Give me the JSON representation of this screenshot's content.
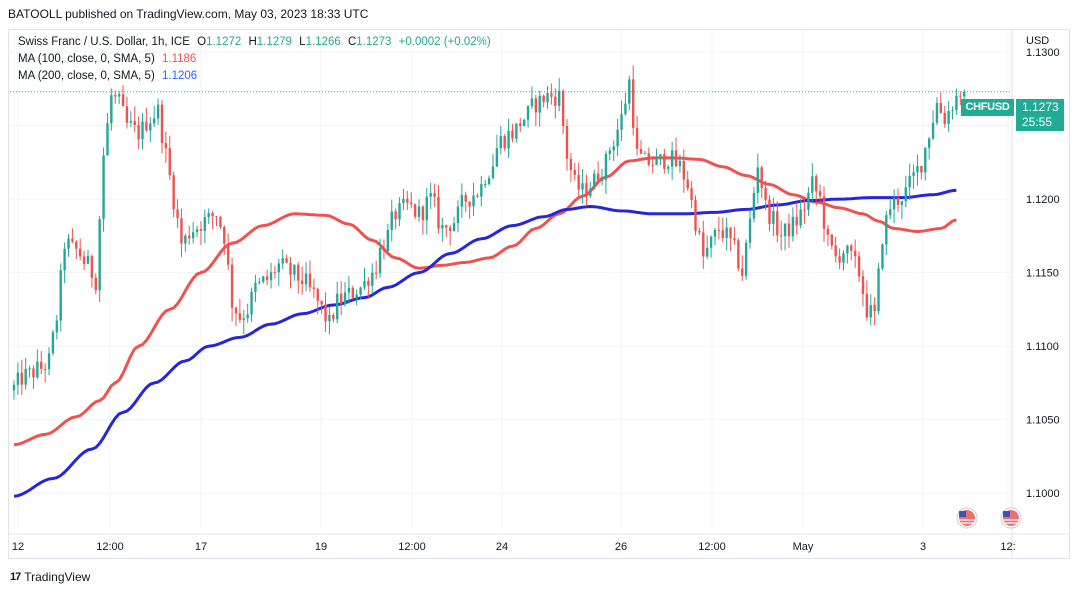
{
  "publisher_line": "BATOOLL published on TradingView.com, May 03, 2023 18:33 UTC",
  "legend": {
    "symbol": "Swiss Franc / U.S. Dollar, 1h, ICE",
    "open_label": "O",
    "open": "1.1272",
    "high_label": "H",
    "high": "1.1279",
    "low_label": "L",
    "low": "1.1266",
    "close_label": "C",
    "close": "1.1273",
    "change": "+0.0002 (+0.02%)",
    "ma100_label": "MA (100, close, 0, SMA, 5)",
    "ma100_value": "1.1186",
    "ma200_label": "MA (200, close, 0, SMA, 5)",
    "ma200_value": "1.1206"
  },
  "currency_label": "USD",
  "last_price_tag": {
    "symbol": "CHFUSD",
    "price": "1.1273",
    "countdown": "25:55"
  },
  "footer_brand": "TradingView",
  "colors": {
    "up": "#26a69a",
    "down": "#ef5350",
    "ma100": "#ef5350",
    "ma200": "#2727d9",
    "price_line": "#22ab94",
    "grid": "#f0f3fa"
  },
  "chart_data": {
    "type": "candlestick",
    "ylim": [
      1.0975,
      1.1315
    ],
    "y_ticks": [
      "1.1300",
      "1.1250",
      "1.1200",
      "1.1150",
      "1.1100",
      "1.1050",
      "1.1000"
    ],
    "x_ticks": [
      "12",
      "12:00",
      "17",
      "19",
      "12:00",
      "24",
      "26",
      "12:00",
      "May",
      "3",
      "12:"
    ],
    "last_price": 1.1273,
    "price_anchors": [
      [
        0,
        1.107
      ],
      [
        4,
        1.108
      ],
      [
        8,
        1.1085
      ],
      [
        10,
        1.109
      ],
      [
        12,
        1.112
      ],
      [
        14,
        1.117
      ],
      [
        17,
        1.1165
      ],
      [
        20,
        1.1155
      ],
      [
        22,
        1.1145
      ],
      [
        24,
        1.123
      ],
      [
        26,
        1.127
      ],
      [
        28,
        1.1265
      ],
      [
        30,
        1.125
      ],
      [
        33,
        1.1245
      ],
      [
        36,
        1.1255
      ],
      [
        38,
        1.126
      ],
      [
        40,
        1.123
      ],
      [
        42,
        1.12
      ],
      [
        44,
        1.117
      ],
      [
        47,
        1.118
      ],
      [
        50,
        1.1185
      ],
      [
        53,
        1.119
      ],
      [
        55,
        1.1175
      ],
      [
        57,
        1.113
      ],
      [
        59,
        1.112
      ],
      [
        61,
        1.1125
      ],
      [
        63,
        1.114
      ],
      [
        66,
        1.1145
      ],
      [
        69,
        1.1155
      ],
      [
        72,
        1.115
      ],
      [
        75,
        1.1145
      ],
      [
        78,
        1.1135
      ],
      [
        80,
        1.1125
      ],
      [
        82,
        1.1115
      ],
      [
        84,
        1.113
      ],
      [
        87,
        1.1135
      ],
      [
        90,
        1.114
      ],
      [
        93,
        1.115
      ],
      [
        96,
        1.117
      ],
      [
        99,
        1.119
      ],
      [
        102,
        1.1195
      ],
      [
        105,
        1.119
      ],
      [
        108,
        1.12
      ],
      [
        111,
        1.118
      ],
      [
        114,
        1.1185
      ],
      [
        117,
        1.12
      ],
      [
        120,
        1.1205
      ],
      [
        123,
        1.122
      ],
      [
        126,
        1.124
      ],
      [
        129,
        1.1245
      ],
      [
        132,
        1.1255
      ],
      [
        135,
        1.1265
      ],
      [
        138,
        1.127
      ],
      [
        141,
        1.127
      ],
      [
        143,
        1.123
      ],
      [
        145,
        1.121
      ],
      [
        147,
        1.1205
      ],
      [
        149,
        1.121
      ],
      [
        152,
        1.122
      ],
      [
        155,
        1.124
      ],
      [
        157,
        1.1255
      ],
      [
        159,
        1.128
      ],
      [
        161,
        1.123
      ],
      [
        163,
        1.1225
      ],
      [
        166,
        1.1225
      ],
      [
        169,
        1.1228
      ],
      [
        172,
        1.1222
      ],
      [
        174,
        1.121
      ],
      [
        176,
        1.1185
      ],
      [
        178,
        1.116
      ],
      [
        180,
        1.117
      ],
      [
        182,
        1.118
      ],
      [
        184,
        1.1175
      ],
      [
        186,
        1.1165
      ],
      [
        188,
        1.115
      ],
      [
        190,
        1.1185
      ],
      [
        192,
        1.1225
      ],
      [
        194,
        1.1195
      ],
      [
        196,
        1.1185
      ],
      [
        198,
        1.1175
      ],
      [
        200,
        1.118
      ],
      [
        202,
        1.1185
      ],
      [
        204,
        1.1195
      ],
      [
        206,
        1.121
      ],
      [
        208,
        1.12
      ],
      [
        210,
        1.117
      ],
      [
        212,
        1.116
      ],
      [
        214,
        1.1165
      ],
      [
        216,
        1.116
      ],
      [
        218,
        1.115
      ],
      [
        220,
        1.1125
      ],
      [
        222,
        1.112
      ],
      [
        224,
        1.1175
      ],
      [
        226,
        1.1195
      ],
      [
        228,
        1.12
      ],
      [
        230,
        1.1205
      ],
      [
        232,
        1.1215
      ],
      [
        234,
        1.1225
      ],
      [
        236,
        1.1245
      ],
      [
        238,
        1.1265
      ],
      [
        240,
        1.1255
      ],
      [
        242,
        1.1265
      ],
      [
        244,
        1.1273
      ]
    ],
    "ma100_anchors": [
      [
        0,
        1.1033
      ],
      [
        8,
        1.104
      ],
      [
        16,
        1.1052
      ],
      [
        22,
        1.1063
      ],
      [
        26,
        1.1075
      ],
      [
        32,
        1.11
      ],
      [
        40,
        1.1125
      ],
      [
        48,
        1.115
      ],
      [
        56,
        1.117
      ],
      [
        64,
        1.1182
      ],
      [
        72,
        1.119
      ],
      [
        80,
        1.1189
      ],
      [
        86,
        1.1183
      ],
      [
        92,
        1.1172
      ],
      [
        98,
        1.116
      ],
      [
        104,
        1.1153
      ],
      [
        110,
        1.1155
      ],
      [
        116,
        1.1157
      ],
      [
        122,
        1.116
      ],
      [
        128,
        1.1168
      ],
      [
        134,
        1.118
      ],
      [
        140,
        1.119
      ],
      [
        146,
        1.1202
      ],
      [
        152,
        1.1215
      ],
      [
        158,
        1.1226
      ],
      [
        164,
        1.1228
      ],
      [
        170,
        1.1228
      ],
      [
        176,
        1.1227
      ],
      [
        182,
        1.1222
      ],
      [
        188,
        1.1216
      ],
      [
        194,
        1.121
      ],
      [
        200,
        1.1203
      ],
      [
        206,
        1.1198
      ],
      [
        212,
        1.1194
      ],
      [
        218,
        1.119
      ],
      [
        222,
        1.1185
      ],
      [
        226,
        1.118
      ],
      [
        232,
        1.1178
      ],
      [
        238,
        1.118
      ],
      [
        242,
        1.1186
      ]
    ],
    "ma200_anchors": [
      [
        0,
        1.0998
      ],
      [
        10,
        1.101
      ],
      [
        20,
        1.103
      ],
      [
        28,
        1.1055
      ],
      [
        36,
        1.1075
      ],
      [
        44,
        1.109
      ],
      [
        50,
        1.11
      ],
      [
        58,
        1.1106
      ],
      [
        66,
        1.1115
      ],
      [
        74,
        1.1122
      ],
      [
        82,
        1.1128
      ],
      [
        90,
        1.1133
      ],
      [
        96,
        1.114
      ],
      [
        104,
        1.115
      ],
      [
        112,
        1.1163
      ],
      [
        120,
        1.1173
      ],
      [
        128,
        1.1182
      ],
      [
        136,
        1.1188
      ],
      [
        142,
        1.1193
      ],
      [
        148,
        1.1195
      ],
      [
        156,
        1.1192
      ],
      [
        164,
        1.119
      ],
      [
        172,
        1.119
      ],
      [
        180,
        1.1191
      ],
      [
        188,
        1.1193
      ],
      [
        196,
        1.1196
      ],
      [
        204,
        1.1199
      ],
      [
        212,
        1.12
      ],
      [
        220,
        1.1201
      ],
      [
        228,
        1.1201
      ],
      [
        236,
        1.1203
      ],
      [
        242,
        1.1206
      ]
    ]
  }
}
